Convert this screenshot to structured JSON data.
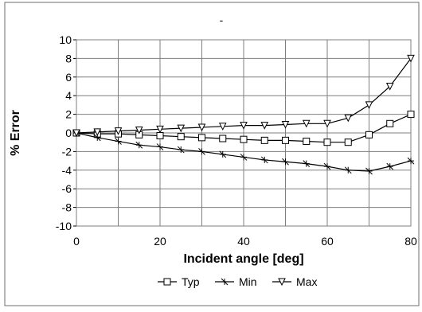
{
  "chart_data": {
    "type": "line",
    "title": "-",
    "xlabel": "Incident angle [deg]",
    "ylabel": "% Error",
    "xlim": [
      0,
      80
    ],
    "ylim": [
      -10,
      10
    ],
    "x_ticks": [
      0,
      20,
      40,
      60,
      80
    ],
    "y_ticks": [
      10,
      8,
      6,
      4,
      2,
      0,
      -2,
      -4,
      -6,
      -8,
      -10
    ],
    "grid": true,
    "legend_position": "bottom",
    "series": [
      {
        "name": "Typ",
        "marker": "square",
        "x": [
          0,
          5,
          10,
          15,
          20,
          25,
          30,
          35,
          40,
          45,
          50,
          55,
          60,
          65,
          70,
          75,
          80
        ],
        "values": [
          0,
          -0.1,
          -0.1,
          -0.2,
          -0.3,
          -0.4,
          -0.5,
          -0.6,
          -0.7,
          -0.8,
          -0.8,
          -0.9,
          -1,
          -1,
          -0.2,
          1,
          2
        ]
      },
      {
        "name": "Min",
        "marker": "cross",
        "x": [
          0,
          5,
          10,
          15,
          20,
          25,
          30,
          35,
          40,
          45,
          50,
          55,
          60,
          65,
          70,
          75,
          80
        ],
        "values": [
          0,
          -0.5,
          -0.9,
          -1.3,
          -1.5,
          -1.8,
          -2,
          -2.3,
          -2.6,
          -2.9,
          -3.1,
          -3.3,
          -3.6,
          -4,
          -4.1,
          -3.6,
          -3
        ]
      },
      {
        "name": "Max",
        "marker": "triangle-down",
        "x": [
          0,
          5,
          10,
          15,
          20,
          25,
          30,
          35,
          40,
          45,
          50,
          55,
          60,
          65,
          70,
          75,
          80
        ],
        "values": [
          0,
          0.1,
          0.2,
          0.3,
          0.4,
          0.5,
          0.6,
          0.7,
          0.8,
          0.8,
          0.9,
          1,
          1,
          1.6,
          3,
          5,
          8
        ]
      }
    ]
  },
  "colors": {
    "background": "#ffffff",
    "grid": "#7f7f7f",
    "series": "#000000"
  }
}
